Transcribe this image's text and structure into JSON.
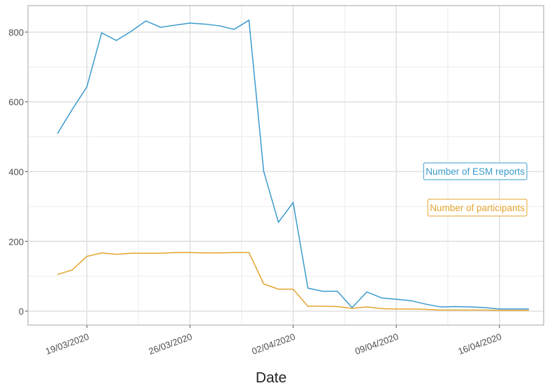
{
  "chart_data": {
    "type": "line",
    "x_label": "Date",
    "x": [
      "17/03/2020",
      "18/03/2020",
      "19/03/2020",
      "20/03/2020",
      "21/03/2020",
      "22/03/2020",
      "23/03/2020",
      "24/03/2020",
      "25/03/2020",
      "26/03/2020",
      "27/03/2020",
      "28/03/2020",
      "29/03/2020",
      "30/03/2020",
      "31/03/2020",
      "01/04/2020",
      "02/04/2020",
      "03/04/2020",
      "04/04/2020",
      "05/04/2020",
      "06/04/2020",
      "07/04/2020",
      "08/04/2020",
      "09/04/2020",
      "10/04/2020",
      "11/04/2020",
      "12/04/2020",
      "13/04/2020",
      "14/04/2020",
      "15/04/2020",
      "16/04/2020",
      "17/04/2020",
      "18/04/2020"
    ],
    "series": [
      {
        "name": "Number of ESM reports",
        "color": "#3a9bcc",
        "values": [
          509,
          578,
          643,
          798,
          776,
          802,
          832,
          814,
          820,
          826,
          823,
          818,
          808,
          834,
          401,
          255,
          311,
          66,
          57,
          57,
          10,
          55,
          38,
          34,
          30,
          20,
          12,
          13,
          12,
          10,
          6,
          6,
          6
        ]
      },
      {
        "name": "Number of participants",
        "color": "#e3a32e",
        "values": [
          105,
          118,
          157,
          167,
          163,
          166,
          166,
          166,
          168,
          168,
          167,
          167,
          168,
          168,
          78,
          63,
          63,
          14,
          14,
          13,
          8,
          12,
          7,
          6,
          6,
          5,
          3,
          3,
          3,
          3,
          2,
          2,
          2
        ]
      }
    ],
    "xlim": [
      "15/03/2020",
      "19/04/2020"
    ],
    "xticks": [
      "19/03/2020",
      "26/03/2020",
      "02/04/2020",
      "09/04/2020",
      "16/04/2020"
    ],
    "ylim": [
      -40,
      876
    ],
    "yticks": [
      0,
      200,
      400,
      600,
      800
    ],
    "grid": true
  }
}
